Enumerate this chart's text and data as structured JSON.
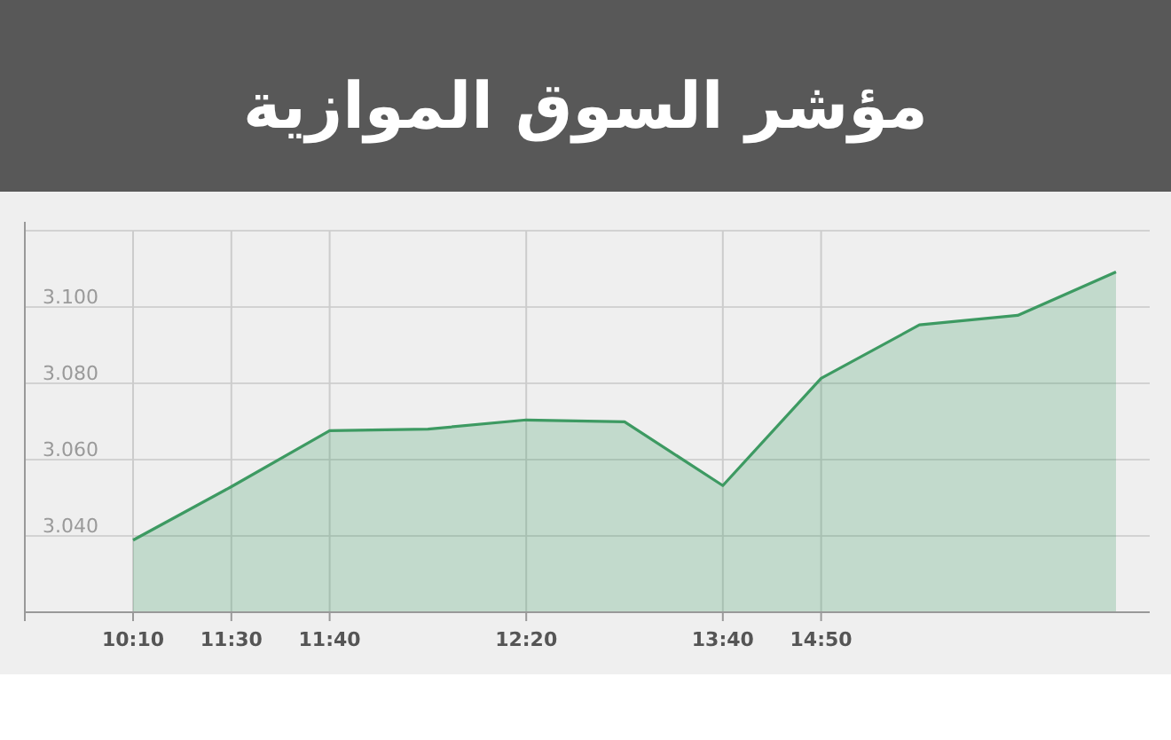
{
  "chart_data": {
    "type": "area",
    "title": "مؤشر السوق الموازية",
    "categories": [
      "10:10",
      "11:30",
      "11:40",
      null,
      "12:20",
      null,
      "13:40",
      "14:50",
      null,
      null,
      null
    ],
    "series": [
      {
        "color": "#3d9a62",
        "values": [
          3038.9,
          3052.9,
          3067.6,
          3068,
          3070.4,
          3069.9,
          3053.2,
          3081.3,
          3095.3,
          3097.8,
          3109.2
        ]
      }
    ],
    "ylim": [
      3020,
      3120
    ],
    "yticks": [
      {
        "value": 3020,
        "label": null
      },
      {
        "value": 3040,
        "label": "3.040"
      },
      {
        "value": 3060,
        "label": "3.060"
      },
      {
        "value": 3080,
        "label": "3.080"
      },
      {
        "value": 3100,
        "label": "3.100"
      },
      {
        "value": 3120,
        "label": null
      }
    ],
    "grid": true
  }
}
